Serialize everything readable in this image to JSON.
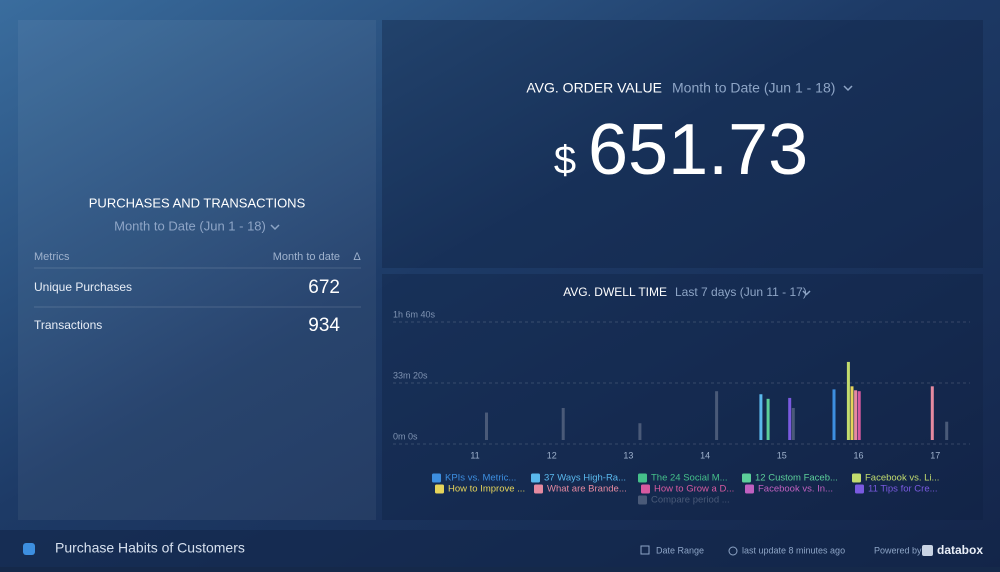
{
  "purchases": {
    "title": "PURCHASES AND TRANSACTIONS",
    "range": "Month to Date (Jun 1 - 18)",
    "columns": [
      "Metrics",
      "Month to date",
      "Δ"
    ],
    "rows": [
      [
        "Unique Purchases",
        672
      ],
      [
        "Transactions",
        934
      ]
    ]
  },
  "order_value": {
    "title": "AVG. ORDER VALUE",
    "range": "Month to Date (Jun 1 - 18)",
    "currency": "$",
    "value": 651.73
  },
  "chart_data": {
    "type": "bar",
    "title": "AVG. DWELL TIME",
    "subtitle": "Last 7 days (Jun 11 - 17)",
    "categories": [
      "11",
      "12",
      "13",
      "14",
      "15",
      "16",
      "17"
    ],
    "ylim": [
      0,
      4000
    ],
    "yticks": [
      {
        "value": 0,
        "label": "0m 0s"
      },
      {
        "value": 2000,
        "label": "33m 20s"
      },
      {
        "value": 4000,
        "label": "1h 6m 40s"
      }
    ],
    "grid": true,
    "series": [
      {
        "name": "KPIs vs. Metric...",
        "color": "#3d8fe0",
        "values": [
          0,
          0,
          0,
          0,
          0,
          1660,
          0
        ]
      },
      {
        "name": "37 Ways High-Ra...",
        "color": "#5ab8ec",
        "values": [
          0,
          0,
          0,
          0,
          1500,
          0,
          0
        ]
      },
      {
        "name": "The 24 Social M...",
        "color": "#45c08a",
        "values": [
          0,
          0,
          0,
          0,
          0,
          0,
          0
        ]
      },
      {
        "name": "12 Custom Faceb...",
        "color": "#5ccf9a",
        "values": [
          0,
          0,
          0,
          0,
          1350,
          0,
          0
        ]
      },
      {
        "name": "Facebook vs. Li...",
        "color": "#c2dc6e",
        "values": [
          0,
          0,
          0,
          0,
          0,
          2560,
          0
        ]
      },
      {
        "name": "How to Improve ...",
        "color": "#e6d45a",
        "values": [
          0,
          0,
          0,
          0,
          0,
          1760,
          0
        ]
      },
      {
        "name": "What are Brande...",
        "color": "#e58aa0",
        "values": [
          0,
          0,
          0,
          0,
          0,
          1630,
          1760
        ]
      },
      {
        "name": "How to Grow a D...",
        "color": "#d85aa0",
        "values": [
          0,
          0,
          0,
          0,
          0,
          1600,
          0
        ]
      },
      {
        "name": "Facebook vs. In...",
        "color": "#c060c0",
        "values": [
          0,
          0,
          0,
          0,
          0,
          0,
          0
        ]
      },
      {
        "name": "11 Tips for Cre...",
        "color": "#7a5ae0",
        "values": [
          0,
          0,
          0,
          0,
          1380,
          0,
          0
        ]
      },
      {
        "name": "Compare period ...",
        "color": "#4a5a78",
        "values": [
          900,
          1050,
          550,
          1600,
          1050,
          0,
          600
        ]
      }
    ]
  },
  "footer": {
    "title": "Purchase Habits of Customers",
    "date_range": "Date Range",
    "last_update": "last update 8 minutes ago",
    "powered": "Powered by",
    "brand": "databox"
  }
}
